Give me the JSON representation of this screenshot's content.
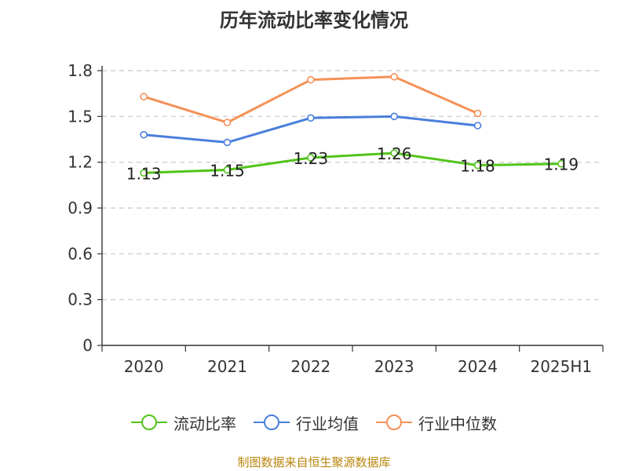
{
  "chart_data": {
    "type": "line",
    "title": "历年流动比率变化情况",
    "categories": [
      "2020",
      "2021",
      "2022",
      "2023",
      "2024",
      "2025H1"
    ],
    "y_ticks": [
      "0",
      "0.3",
      "0.6",
      "0.9",
      "1.2",
      "1.5",
      "1.8"
    ],
    "ylim": [
      0,
      1.8
    ],
    "grid": true,
    "legend_position": "bottom",
    "series": [
      {
        "name": "流动比率",
        "color": "#52c41a",
        "values": [
          1.13,
          1.15,
          1.23,
          1.26,
          1.18,
          1.19
        ],
        "labels": [
          "1.13",
          "1.15",
          "1.23",
          "1.26",
          "1.18",
          "1.19"
        ]
      },
      {
        "name": "行业均值",
        "color": "#4a7fdc",
        "values": [
          1.38,
          1.33,
          1.49,
          1.5,
          1.44,
          null
        ]
      },
      {
        "name": "行业中位数",
        "color": "#f59157",
        "values": [
          1.63,
          1.46,
          1.74,
          1.76,
          1.52,
          null
        ]
      }
    ],
    "source": "制图数据来自恒生聚源数据库"
  }
}
